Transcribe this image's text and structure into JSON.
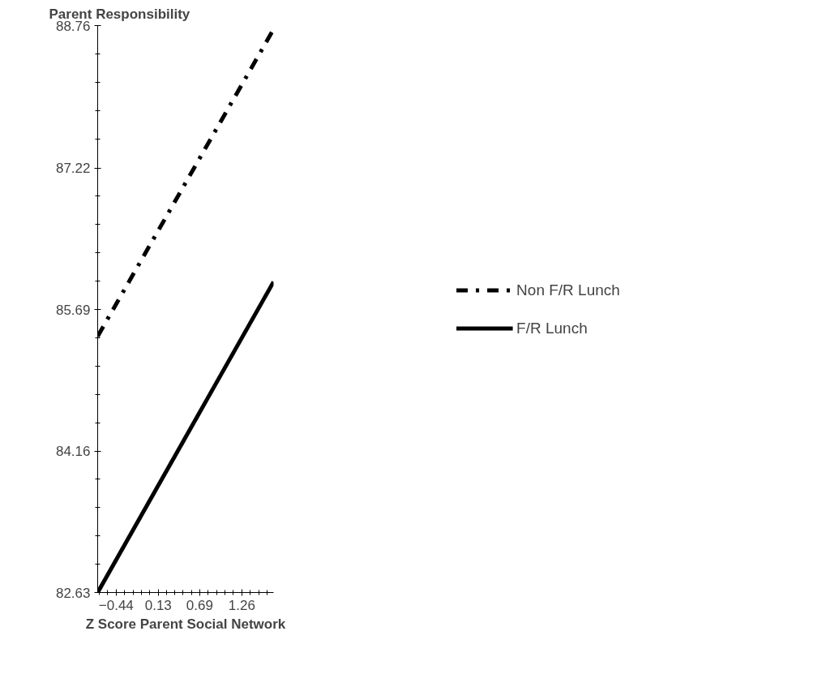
{
  "chart_data": {
    "type": "line",
    "xlabel": "Z Score Parent Social Network",
    "ylabel": "Parent Responsibility",
    "x": [
      -0.69,
      1.69
    ],
    "series": [
      {
        "name": "Non F/R Lunch",
        "color": "#000000",
        "values": [
          85.4,
          88.72
        ],
        "line_style": "dashdot"
      },
      {
        "name": "F/R Lunch",
        "color": "#000000",
        "values": [
          82.63,
          85.99
        ],
        "line_style": "solid"
      }
    ],
    "xlim": [
      -0.69,
      1.69
    ],
    "ylim": [
      82.63,
      88.76
    ],
    "xticks": [
      -0.44,
      0.13,
      0.69,
      1.26
    ],
    "yticks": [
      82.63,
      84.16,
      85.69,
      87.22,
      88.76
    ],
    "grid": false,
    "legend": "right",
    "marker": "none"
  }
}
